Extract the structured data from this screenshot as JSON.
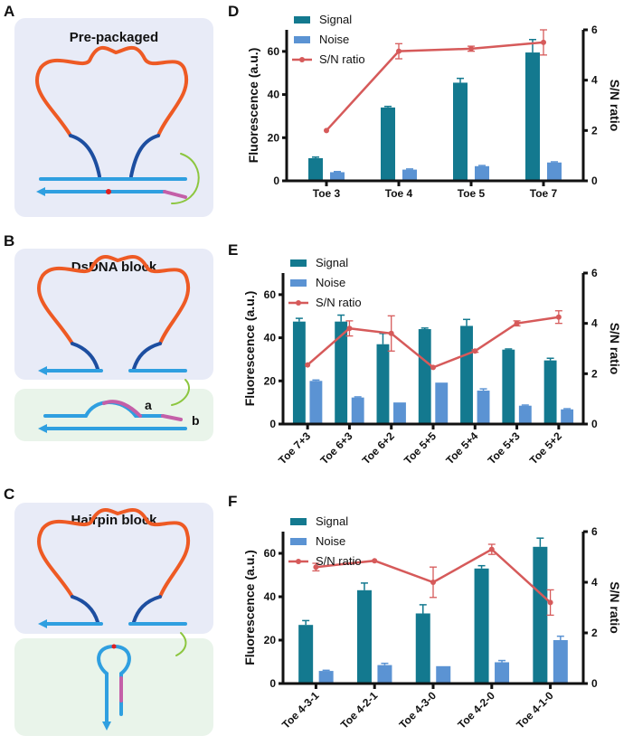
{
  "colors": {
    "signal": "#13798f",
    "noise": "#5b93d3",
    "ratio": "#d65a5a",
    "strand_orange": "#ee5a24",
    "strand_blue": "#2f9fe0",
    "strand_dark": "#1d4ea0",
    "toehold": "#c45fa8",
    "arrow_green": "#8cc63f",
    "panel_bg": "#e8ebf7",
    "panel_bg_green": "#e9f4ea"
  },
  "diagrams": {
    "A": {
      "label": "A",
      "title": "Pre-packaged"
    },
    "B": {
      "label": "B",
      "title": "DsDNA block",
      "mark_a": "a",
      "mark_b": "b"
    },
    "C": {
      "label": "C",
      "title": "Hairpin block"
    }
  },
  "chart_data": [
    {
      "panel": "D",
      "type": "bar+line",
      "categories": [
        "Toe 3",
        "Toe 4",
        "Toe 5",
        "Toe 7"
      ],
      "ylabel": "Fluorescence (a.u.)",
      "y2label": "S/N ratio",
      "ylim": [
        0,
        70
      ],
      "yticks": [
        0,
        20,
        40,
        60
      ],
      "y2lim": [
        0,
        6
      ],
      "y2ticks": [
        0,
        2,
        4,
        6
      ],
      "legend": [
        "Signal",
        "Noise",
        "S/N ratio"
      ],
      "legend_position": "top-left",
      "rotate_xticks": false,
      "series": [
        {
          "name": "Signal",
          "type": "bar",
          "values": [
            10.5,
            34,
            45.5,
            59.5
          ],
          "errors": [
            0.5,
            0.5,
            2,
            6
          ]
        },
        {
          "name": "Noise",
          "type": "bar",
          "values": [
            4,
            5.2,
            6.8,
            8.5
          ],
          "errors": [
            0.3,
            0.3,
            0.3,
            0.3
          ]
        },
        {
          "name": "S/N ratio",
          "type": "line",
          "axis": "right",
          "values": [
            2.0,
            5.15,
            5.25,
            5.5
          ],
          "errors": [
            0,
            0.3,
            0.1,
            0.5
          ]
        }
      ]
    },
    {
      "panel": "E",
      "type": "bar+line",
      "categories": [
        "Toe 7+3",
        "Toe 6+3",
        "Toe 6+2",
        "Toe 5+5",
        "Toe 5+4",
        "Toe 5+3",
        "Toe 5+2"
      ],
      "ylabel": "Fluorescence (a.u.)",
      "y2label": "S/N ratio",
      "ylim": [
        0,
        70
      ],
      "yticks": [
        0,
        20,
        40,
        60
      ],
      "y2lim": [
        0,
        6
      ],
      "y2ticks": [
        0,
        2,
        4,
        6
      ],
      "legend": [
        "Signal",
        "Noise",
        "S/N ratio"
      ],
      "legend_position": "top-left",
      "rotate_xticks": true,
      "series": [
        {
          "name": "Signal",
          "type": "bar",
          "values": [
            47.5,
            47.5,
            37,
            44,
            45.5,
            34.5,
            29.5
          ],
          "errors": [
            1.5,
            3,
            5,
            0.5,
            3,
            0.3,
            1
          ]
        },
        {
          "name": "Noise",
          "type": "bar",
          "values": [
            20,
            12.3,
            10,
            19.2,
            15.5,
            8.5,
            6.8
          ],
          "errors": [
            0.4,
            0.3,
            0,
            0,
            0.8,
            0.3,
            0.3
          ]
        },
        {
          "name": "S/N ratio",
          "type": "line",
          "axis": "right",
          "values": [
            2.35,
            3.8,
            3.6,
            2.25,
            2.9,
            4.0,
            4.25
          ],
          "errors": [
            0,
            0.3,
            0.7,
            0,
            0.05,
            0.1,
            0.25
          ]
        }
      ]
    },
    {
      "panel": "F",
      "type": "bar+line",
      "categories": [
        "Toe 4-3-1",
        "Toe 4-2-1",
        "Toe 4-3-0",
        "Toe 4-2-0",
        "Toe 4-1-0"
      ],
      "ylabel": "Fluorescence (a.u.)",
      "y2label": "S/N ratio",
      "ylim": [
        0,
        70
      ],
      "yticks": [
        0,
        20,
        40,
        60
      ],
      "y2lim": [
        0,
        6
      ],
      "y2ticks": [
        0,
        2,
        4,
        6
      ],
      "legend": [
        "Signal",
        "Noise",
        "S/N ratio"
      ],
      "legend_position": "top-left",
      "rotate_xticks": true,
      "series": [
        {
          "name": "Signal",
          "type": "bar",
          "values": [
            27,
            43,
            32.3,
            53,
            63
          ],
          "errors": [
            2,
            3.3,
            4,
            1.3,
            4
          ]
        },
        {
          "name": "Noise",
          "type": "bar",
          "values": [
            5.8,
            8.5,
            8,
            9.8,
            20
          ],
          "errors": [
            0.3,
            0.8,
            0,
            0.8,
            1.8
          ]
        },
        {
          "name": "S/N ratio",
          "type": "line",
          "axis": "right",
          "values": [
            4.6,
            4.85,
            4.0,
            5.3,
            3.2
          ],
          "errors": [
            0.15,
            0,
            0.6,
            0.2,
            0.5
          ]
        }
      ]
    }
  ]
}
